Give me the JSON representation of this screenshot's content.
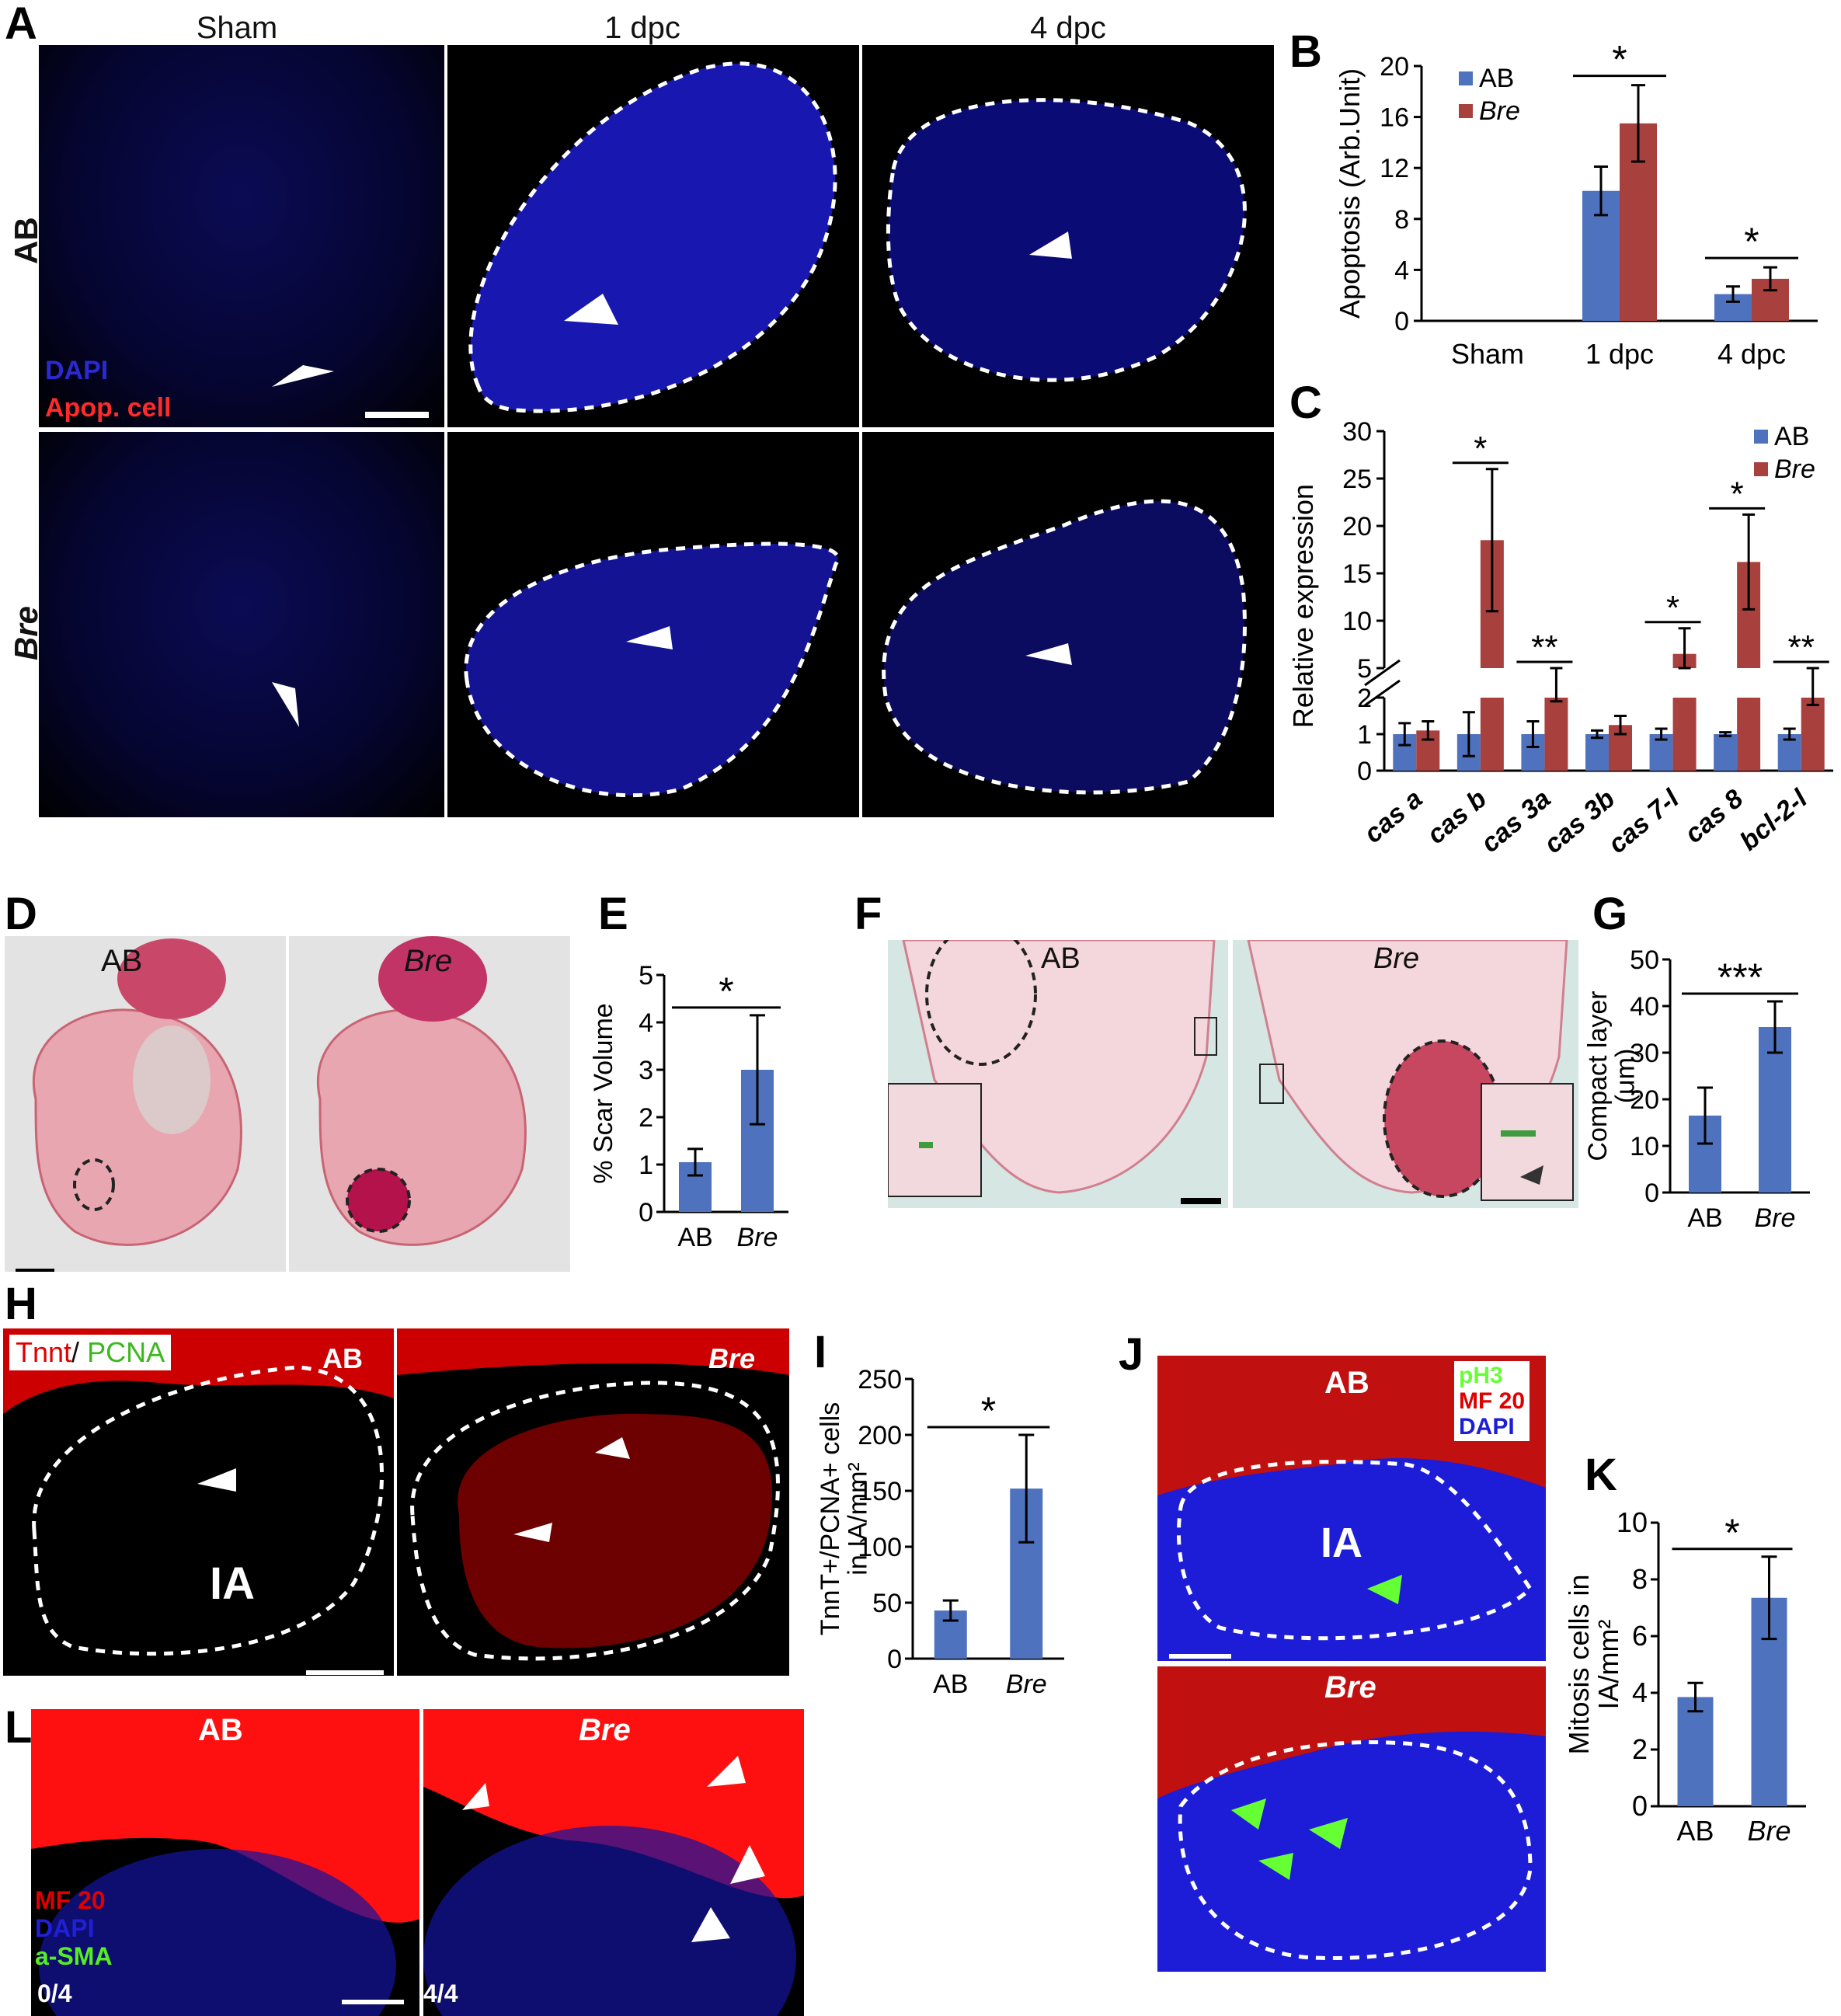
{
  "panel_labels": {
    "A": "A",
    "B": "B",
    "C": "C",
    "D": "D",
    "E": "E",
    "F": "F",
    "G": "G",
    "H": "H",
    "I": "I",
    "J": "J",
    "K": "K",
    "L": "L"
  },
  "panelA": {
    "columns": [
      "Sham",
      "1 dpc",
      "4 dpc"
    ],
    "rows": [
      "AB",
      "Bre"
    ],
    "legend": {
      "dapi": "DAPI",
      "apop": "Apop. cell"
    }
  },
  "panelD": {
    "labels": [
      "AB",
      "Bre"
    ]
  },
  "panelF": {
    "labels": [
      "AB",
      "Bre"
    ]
  },
  "panelH": {
    "legend_tnnt": "Tnnt",
    "legend_sep": "/ ",
    "legend_pcna": "PCNA",
    "labels": [
      "AB",
      "Bre"
    ],
    "ia": "IA"
  },
  "panelJ": {
    "legend": [
      "pH3",
      "MF 20",
      "DAPI"
    ],
    "labels": [
      "AB",
      "Bre"
    ],
    "ia": "IA"
  },
  "panelL": {
    "labels": [
      "AB",
      "Bre"
    ],
    "legend": [
      "MF 20",
      "DAPI",
      "a-SMA"
    ],
    "counts": [
      "0/4",
      "4/4"
    ]
  },
  "colors": {
    "ab": "#4f72be",
    "bre": "#a8413e",
    "dapi": "#1a22c8",
    "apop": "#ff2020",
    "pcna": "#66ff33",
    "tnnt": "#e00000"
  },
  "chart_data": [
    {
      "panel": "B",
      "type": "bar",
      "ylabel": "Apoptosis (Arb.Unit)",
      "ylim": [
        0,
        20
      ],
      "yticks": [
        0,
        4,
        8,
        12,
        16,
        20
      ],
      "categories": [
        "Sham",
        "1 dpc",
        "4 dpc"
      ],
      "series": [
        {
          "name": "AB",
          "values": [
            0,
            10.2,
            2.1
          ],
          "errors": [
            0,
            1.9,
            0.6
          ]
        },
        {
          "name": "Bre",
          "values": [
            0,
            15.5,
            3.3
          ],
          "errors": [
            0,
            3.0,
            0.9
          ]
        }
      ],
      "significance": [
        {
          "category": "1 dpc",
          "mark": "*"
        },
        {
          "category": "4 dpc",
          "mark": "*"
        }
      ],
      "legend": "top-left"
    },
    {
      "panel": "C",
      "type": "bar",
      "ylabel": "Relative expression",
      "yticks_lower": [
        0,
        1,
        2
      ],
      "yticks_upper": [
        5,
        10,
        15,
        20,
        25,
        30
      ],
      "categories": [
        "cas a",
        "cas b",
        "cas 3a",
        "cas 3b",
        "cas 7-l",
        "cas 8",
        "bcl-2-l"
      ],
      "series": [
        {
          "name": "AB",
          "values": [
            1.0,
            1.0,
            1.0,
            1.0,
            1.0,
            1.0,
            1.0
          ],
          "errors": [
            0.3,
            0.6,
            0.35,
            0.1,
            0.15,
            0.05,
            0.15
          ]
        },
        {
          "name": "Bre",
          "values": [
            1.1,
            18.5,
            2.1,
            1.25,
            6.5,
            16.2,
            2.1
          ],
          "errors": [
            0.25,
            7.5,
            0.2,
            0.25,
            2.7,
            5.0,
            0.3
          ]
        }
      ],
      "significance": [
        {
          "category": "cas b",
          "mark": "*"
        },
        {
          "category": "cas 3a",
          "mark": "**"
        },
        {
          "category": "cas 7-l",
          "mark": "*"
        },
        {
          "category": "cas 8",
          "mark": "*"
        },
        {
          "category": "bcl-2-l",
          "mark": "**"
        }
      ],
      "legend": "top-right"
    },
    {
      "panel": "E",
      "type": "bar",
      "ylabel": "% Scar Volume",
      "ylim": [
        0,
        5
      ],
      "yticks": [
        0,
        1,
        2,
        3,
        4,
        5
      ],
      "categories": [
        "AB",
        "Bre"
      ],
      "values": [
        1.05,
        3.0
      ],
      "errors": [
        0.28,
        1.15
      ],
      "significance": "*"
    },
    {
      "panel": "G",
      "type": "bar",
      "ylabel": "Compact layer (μm)",
      "ylim": [
        0,
        50
      ],
      "yticks": [
        0,
        10,
        20,
        30,
        40,
        50
      ],
      "categories": [
        "AB",
        "Bre"
      ],
      "values": [
        16.5,
        35.5
      ],
      "errors": [
        6.0,
        5.5
      ],
      "significance": "***"
    },
    {
      "panel": "I",
      "type": "bar",
      "ylabel": "TnnT+/PCNA+ cells in IA/mm²",
      "ylim": [
        0,
        250
      ],
      "yticks": [
        0,
        50,
        100,
        150,
        200,
        250
      ],
      "categories": [
        "AB",
        "Bre"
      ],
      "values": [
        43,
        152
      ],
      "errors": [
        9,
        48
      ],
      "significance": "*"
    },
    {
      "panel": "K",
      "type": "bar",
      "ylabel": "Mitosis cells in IA/mm²",
      "ylim": [
        0,
        10
      ],
      "yticks": [
        0,
        2,
        4,
        6,
        8,
        10
      ],
      "categories": [
        "AB",
        "Bre"
      ],
      "values": [
        3.85,
        7.35
      ],
      "errors": [
        0.5,
        1.45
      ],
      "significance": "*"
    }
  ]
}
